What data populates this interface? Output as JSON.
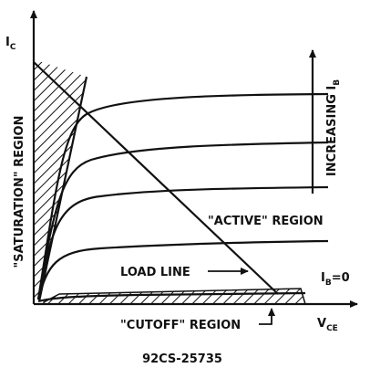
{
  "axes": {
    "y_label": "I",
    "y_label_sub": "C",
    "x_label": "V",
    "x_label_sub": "CE"
  },
  "regions": {
    "saturation": "\"SATURATION\" REGION",
    "active": "\"ACTIVE\" REGION",
    "cutoff": "\"CUTOFF\" REGION"
  },
  "load_line": "LOAD LINE",
  "increasing": {
    "text": "INCREASING I",
    "sub": "B"
  },
  "ib_zero": {
    "text": "I",
    "sub": "B",
    "suffix": "=0"
  },
  "figure_id": "92CS-25735"
}
